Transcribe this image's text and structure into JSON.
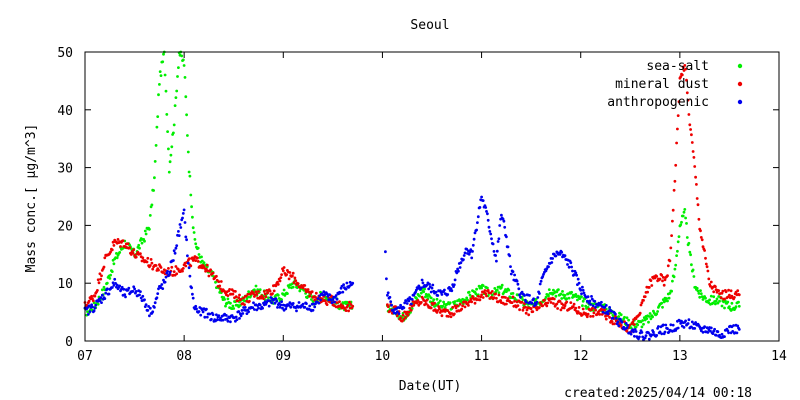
{
  "chart_data": {
    "type": "scatter",
    "title": "Seoul",
    "xlabel": "Date(UT)",
    "ylabel": "Mass conc.[ μg/m^3]",
    "created": "created:2025/04/14 00:18",
    "x_unit": "day of month",
    "xlim": [
      7,
      14
    ],
    "ylim": [
      0,
      50
    ],
    "x_ticks": [
      7,
      8,
      9,
      10,
      11,
      12,
      13,
      14
    ],
    "x_tick_labels": [
      "07",
      "08",
      "09",
      "10",
      "11",
      "12",
      "13",
      "14"
    ],
    "y_ticks": [
      0,
      10,
      20,
      30,
      40,
      50
    ],
    "y_tick_labels": [
      "0",
      "10",
      "20",
      "30",
      "40",
      "50"
    ],
    "legend_position": "top-right",
    "grid": false,
    "series": [
      {
        "name": "sea-salt",
        "color": "#00ee00",
        "segments": [
          {
            "x": [
              7.0,
              7.1,
              7.2,
              7.3,
              7.4,
              7.5,
              7.6,
              7.65,
              7.7,
              7.75,
              7.8,
              7.85,
              7.9,
              7.95,
              8.0,
              8.05,
              8.1,
              8.15,
              8.2,
              8.3,
              8.4,
              8.5,
              8.6,
              8.7,
              8.8,
              8.9,
              9.0,
              9.1,
              9.2,
              9.3,
              9.4,
              9.5,
              9.6,
              9.7
            ],
            "y": [
              5,
              6,
              9,
              14,
              17,
              15,
              18,
              20,
              28,
              45,
              50,
              30,
              38,
              50,
              48,
              30,
              18,
              15,
              13,
              11,
              7,
              6,
              7,
              9,
              8,
              7,
              8,
              10,
              9,
              7,
              8,
              7,
              6,
              6
            ]
          },
          {
            "x": [
              10.05,
              10.15,
              10.2,
              10.3,
              10.4,
              10.5,
              10.6,
              10.7,
              10.8,
              10.9,
              11.0,
              11.1,
              11.2,
              11.3,
              11.4,
              11.5,
              11.6,
              11.7,
              11.8,
              11.9,
              12.0,
              12.1,
              12.2,
              12.3,
              12.4,
              12.5,
              12.6,
              12.7,
              12.75,
              12.8,
              12.85,
              12.9,
              12.95,
              13.0,
              13.05,
              13.1,
              13.15,
              13.2,
              13.3,
              13.4,
              13.5,
              13.6
            ],
            "y": [
              6,
              5,
              4,
              6,
              9,
              7,
              6,
              6,
              7,
              8,
              9,
              8,
              9,
              8,
              7,
              6,
              7,
              9,
              8,
              8,
              7,
              6,
              6,
              5,
              4,
              3,
              3,
              4,
              5,
              6,
              7,
              8,
              12,
              20,
              22,
              15,
              10,
              8,
              7,
              7,
              6,
              6
            ]
          }
        ]
      },
      {
        "name": "mineral dust",
        "color": "#ee0000",
        "segments": [
          {
            "x": [
              7.0,
              7.1,
              7.2,
              7.3,
              7.4,
              7.5,
              7.6,
              7.7,
              7.8,
              7.9,
              8.0,
              8.1,
              8.2,
              8.3,
              8.4,
              8.5,
              8.6,
              8.7,
              8.8,
              8.9,
              9.0,
              9.1,
              9.2,
              9.3,
              9.4,
              9.5,
              9.6,
              9.7
            ],
            "y": [
              6,
              8,
              14,
              17,
              17,
              15,
              14,
              13,
              12,
              12,
              13,
              14,
              13,
              11,
              9,
              8,
              7,
              8,
              8,
              9,
              12,
              11,
              9,
              8,
              7,
              7,
              6,
              6
            ]
          },
          {
            "x": [
              10.05,
              10.15,
              10.2,
              10.3,
              10.4,
              10.5,
              10.6,
              10.7,
              10.8,
              10.9,
              11.0,
              11.1,
              11.2,
              11.3,
              11.4,
              11.5,
              11.6,
              11.7,
              11.8,
              11.9,
              12.0,
              12.1,
              12.2,
              12.3,
              12.4,
              12.5,
              12.6,
              12.65,
              12.7,
              12.75,
              12.8,
              12.85,
              12.9,
              12.95,
              13.0,
              13.05,
              13.1,
              13.15,
              13.2,
              13.3,
              13.4,
              13.5,
              13.6
            ],
            "y": [
              6,
              5,
              4,
              6,
              7,
              6,
              5,
              5,
              6,
              7,
              8,
              8,
              7,
              7,
              6,
              5,
              6,
              7,
              6,
              6,
              5,
              5,
              5,
              4,
              3,
              2,
              5,
              8,
              10,
              11,
              11,
              10,
              14,
              28,
              45,
              48,
              38,
              30,
              20,
              10,
              8,
              8,
              8
            ]
          }
        ]
      },
      {
        "name": "anthropogenic",
        "color": "#0000ee",
        "segments": [
          {
            "x": [
              7.0,
              7.1,
              7.2,
              7.3,
              7.4,
              7.5,
              7.6,
              7.65,
              7.7,
              7.75,
              7.8,
              7.85,
              7.9,
              7.95,
              8.0,
              8.05,
              8.1,
              8.15,
              8.2,
              8.3,
              8.4,
              8.5,
              8.6,
              8.7,
              8.8,
              8.9,
              9.0,
              9.1,
              9.2,
              9.3,
              9.4,
              9.5,
              9.6,
              9.7
            ],
            "y": [
              5,
              6,
              8,
              10,
              8,
              9,
              7,
              5,
              6,
              9,
              10,
              12,
              15,
              19,
              22,
              12,
              6,
              5,
              5,
              4,
              4,
              4,
              5,
              6,
              6,
              7,
              6,
              6,
              6,
              6,
              8,
              7,
              9,
              10
            ]
          },
          {
            "x": [
              10.03,
              10.05,
              10.1,
              10.15,
              10.2,
              10.3,
              10.4,
              10.5,
              10.6,
              10.7,
              10.75,
              10.8,
              10.85,
              10.9,
              10.95,
              11.0,
              11.05,
              11.1,
              11.15,
              11.2,
              11.25,
              11.3,
              11.35,
              11.4,
              11.5,
              11.55,
              11.6,
              11.7,
              11.75,
              11.8,
              11.85,
              11.9,
              11.95,
              12.0,
              12.1,
              12.2,
              12.3,
              12.4,
              12.5,
              12.6,
              12.7,
              12.8,
              12.9,
              13.0,
              13.1,
              13.2,
              13.3,
              13.4,
              13.5,
              13.6
            ],
            "y": [
              15,
              8,
              6,
              5,
              6,
              7,
              10,
              9,
              8,
              9,
              12,
              14,
              16,
              15,
              20,
              25,
              22,
              18,
              14,
              22,
              18,
              12,
              10,
              8,
              7,
              6,
              10,
              14,
              15,
              15,
              14,
              13,
              11,
              9,
              7,
              6,
              5,
              3,
              2,
              1,
              1,
              2,
              2,
              3,
              3,
              2,
              2,
              1,
              2,
              2
            ]
          }
        ]
      }
    ]
  }
}
